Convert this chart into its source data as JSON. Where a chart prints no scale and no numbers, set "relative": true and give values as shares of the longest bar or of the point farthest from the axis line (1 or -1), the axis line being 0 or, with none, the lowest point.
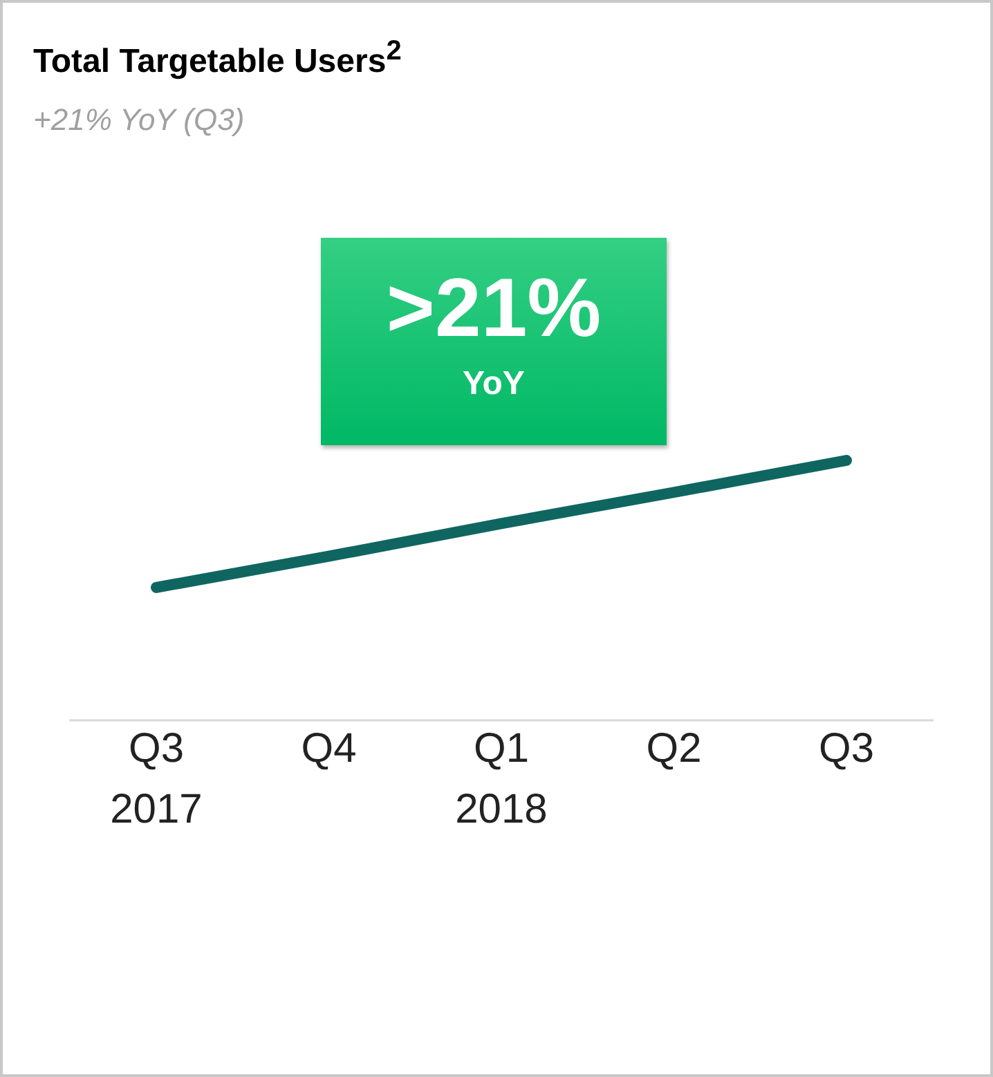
{
  "chart_data": {
    "type": "line",
    "title": "Total Targetable Users$^{2}$",
    "subtitle": "+21% YoY (Q3)",
    "annotations": [
      ">21%",
      "YoY"
    ],
    "relative": true,
    "categories": [
      "Q3\n2017",
      "Q4",
      "Q1\n2018",
      "Q2",
      "Q3"
    ],
    "series": [
      {
        "color": "#0f6661",
        "values": [
          0.511,
          0.631,
          0.757,
          0.877,
          1
        ]
      }
    ]
  }
}
